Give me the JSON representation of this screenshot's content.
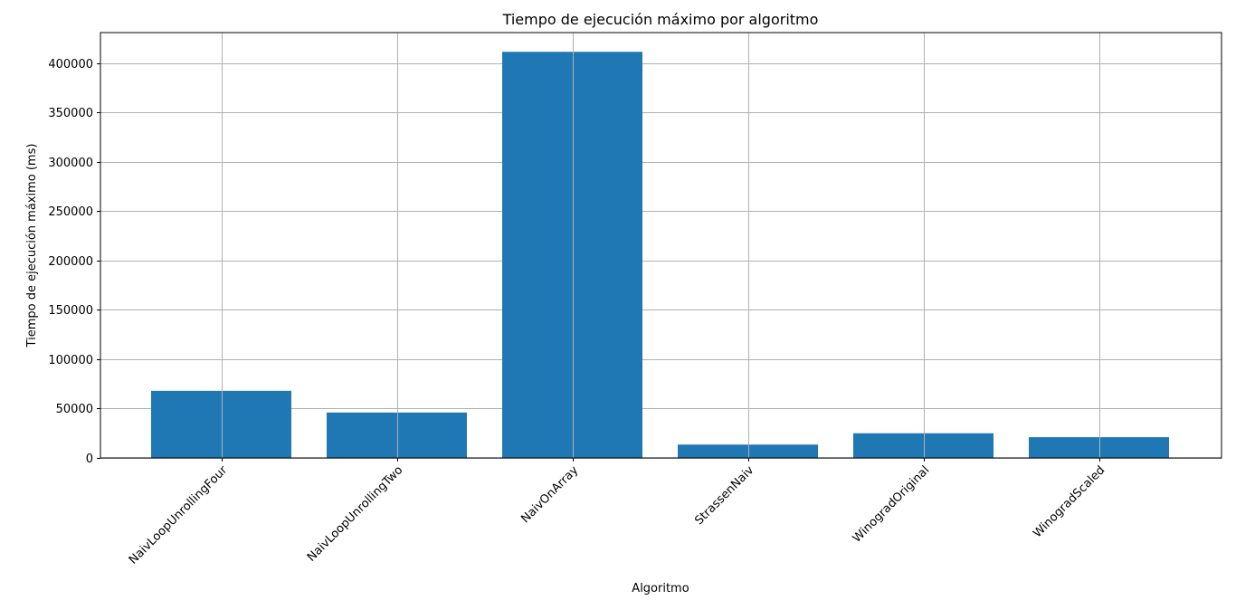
{
  "chart_data": {
    "type": "bar",
    "title": "Tiempo de ejecución máximo por algoritmo",
    "xlabel": "Algoritmo",
    "ylabel": "Tiempo de ejecución máximo (ms)",
    "categories": [
      "NaivLoopUnrollingFour",
      "NaivLoopUnrollingTwo",
      "NaivOnArray",
      "StrassenNaiv",
      "WinogradOriginal",
      "WinogradScaled"
    ],
    "values": [
      68000,
      46000,
      411500,
      13500,
      25000,
      21000
    ],
    "ylim": [
      0,
      431000
    ],
    "yticks": [
      0,
      50000,
      100000,
      150000,
      200000,
      250000,
      300000,
      350000,
      400000
    ],
    "grid": true,
    "bar_color": "#1f77b4",
    "grid_color": "#b0b0b0"
  }
}
